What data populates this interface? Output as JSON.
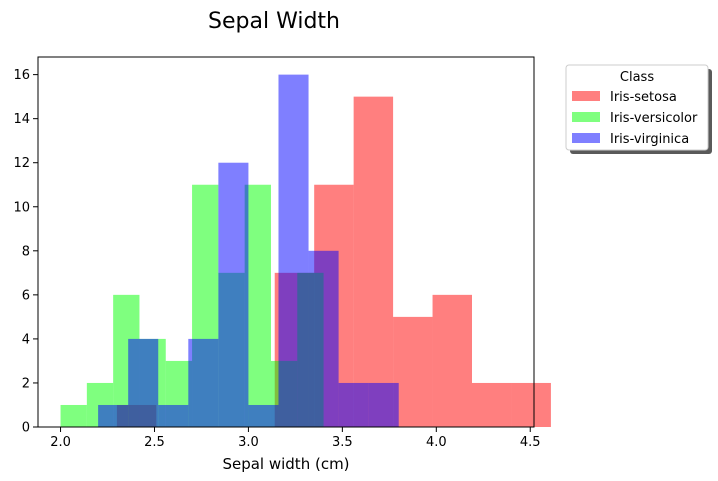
{
  "chart_data": {
    "type": "histogram",
    "title": "Sepal Width",
    "xlabel": "Sepal width (cm)",
    "ylabel": "",
    "xlim": [
      1.88,
      4.52
    ],
    "ylim": [
      0,
      16.8
    ],
    "xticks": [
      "2.0",
      "2.5",
      "3.0",
      "3.5",
      "4.0",
      "4.5"
    ],
    "yticks": [
      "0",
      "2",
      "4",
      "6",
      "8",
      "10",
      "12",
      "14",
      "16"
    ],
    "grid": false,
    "legend": {
      "title": "Class",
      "placement": "outside-top-right",
      "shadow": true
    },
    "series": [
      {
        "name": "Iris-setosa",
        "color": "#ff0000",
        "alpha": 0.5,
        "bin_start": 2.3,
        "bin_width": 0.21,
        "counts": [
          1,
          0,
          0,
          0,
          7,
          11,
          15,
          5,
          6,
          2,
          2
        ]
      },
      {
        "name": "Iris-versicolor",
        "color": "#00ff00",
        "alpha": 0.5,
        "bin_start": 2.0,
        "bin_width": 0.14,
        "counts": [
          1,
          2,
          6,
          4,
          3,
          11,
          7,
          11,
          3,
          7
        ]
      },
      {
        "name": "Iris-virginica",
        "color": "#0000ff",
        "alpha": 0.5,
        "bin_start": 2.2,
        "bin_width": 0.16,
        "counts": [
          1,
          4,
          1,
          4,
          12,
          1,
          16,
          8,
          2,
          2
        ]
      }
    ]
  }
}
